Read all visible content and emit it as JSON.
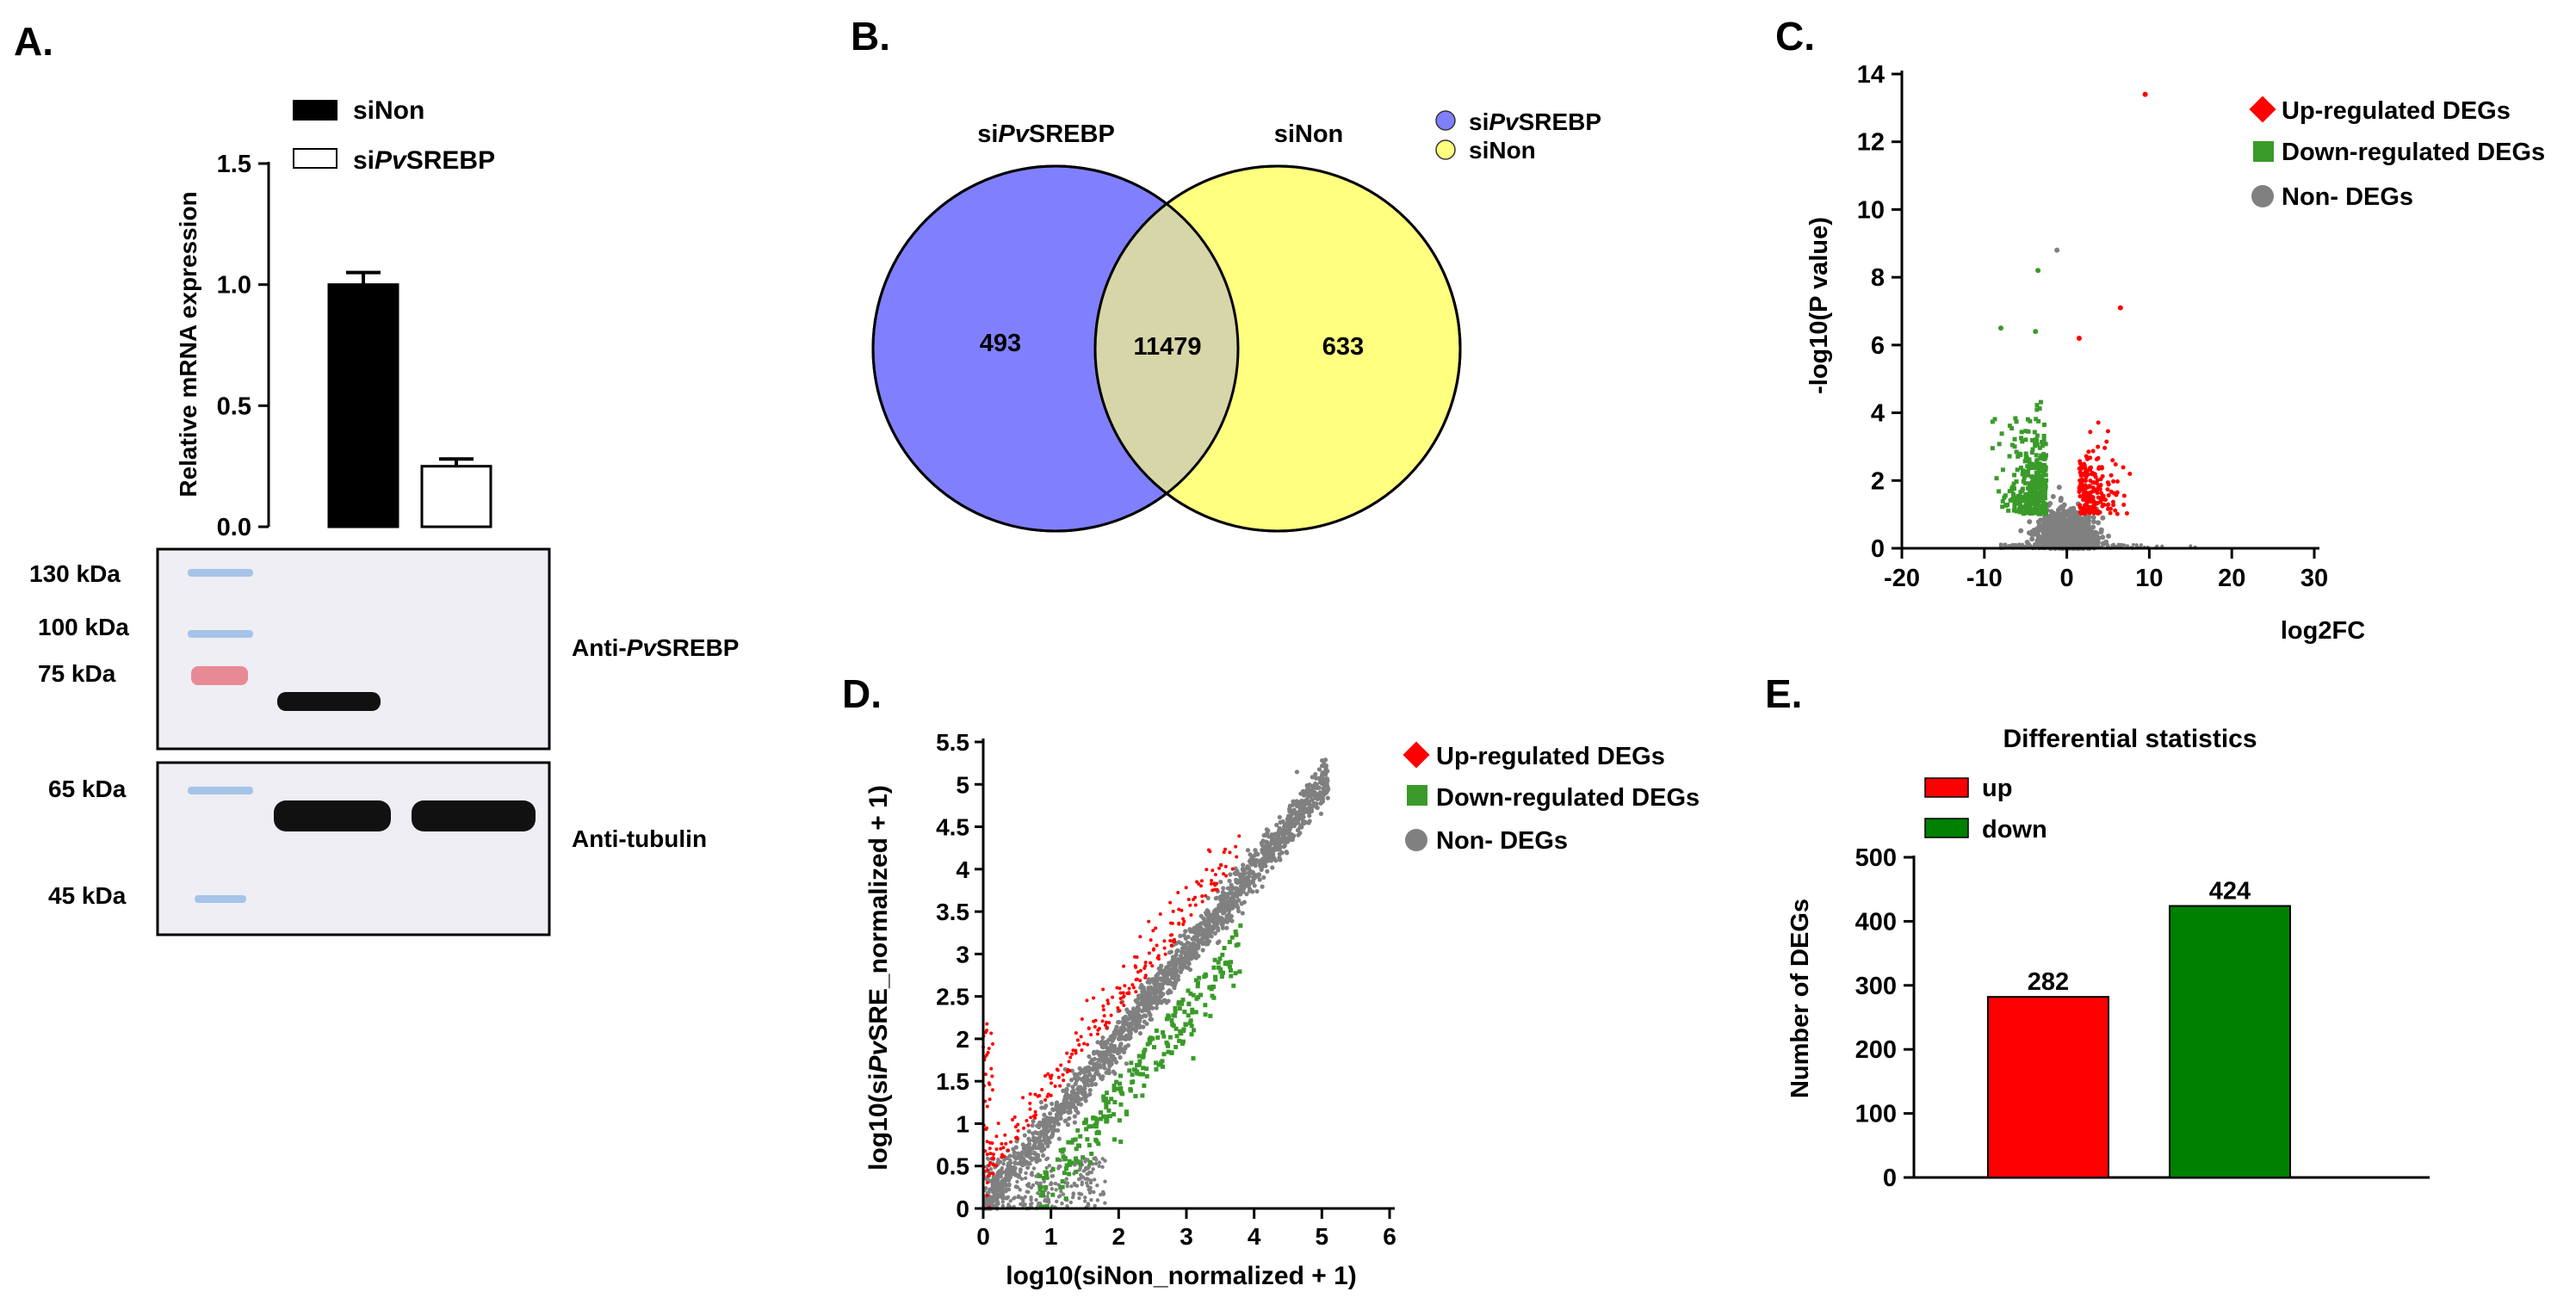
{
  "panels": {
    "a": "A.",
    "b": "B.",
    "c": "C.",
    "d": "D.",
    "e": "E."
  },
  "colors": {
    "up": "#ff0000",
    "down": "#008000",
    "down_light": "#3a9a2a",
    "non": "#808080",
    "venn_left": "#8080ff",
    "venn_right": "#ffff80",
    "venn_overlap": "#d6d6a8"
  },
  "chart_data": [
    {
      "id": "A",
      "type": "bar",
      "title": "",
      "ylabel": "Relative mRNA expression",
      "xlabel": "",
      "ylim": [
        0,
        1.5
      ],
      "yticks": [
        "0.0",
        "0.5",
        "1.0",
        "1.5"
      ],
      "categories": [
        "siNon",
        "siPvSREBP"
      ],
      "values": [
        1.0,
        0.25
      ],
      "errors": [
        0.05,
        0.03
      ],
      "legend": [
        {
          "label": "siNon",
          "fill": "#000000"
        },
        {
          "label_prefix": "si",
          "label_italic": "Pv",
          "label_suffix": "SREBP",
          "fill": "#ffffff"
        }
      ],
      "blots": {
        "top": {
          "markers": [
            "130 kDa",
            "100 kDa",
            "75 kDa"
          ],
          "label_prefix": "Anti-",
          "label_italic": "Pv",
          "label_suffix": "SREBP"
        },
        "bottom": {
          "markers": [
            "65 kDa",
            "45 kDa"
          ],
          "label": "Anti-tubulin"
        }
      }
    },
    {
      "id": "B",
      "type": "venn",
      "sets": [
        {
          "label_prefix": "si",
          "label_italic": "Pv",
          "label_suffix": "SREBP"
        },
        {
          "label": "siNon"
        }
      ],
      "only_left": 493,
      "overlap": 11479,
      "only_right": 633,
      "legend": [
        {
          "label_prefix": "si",
          "label_italic": "Pv",
          "label_suffix": "SREBP"
        },
        {
          "label": "siNon"
        }
      ]
    },
    {
      "id": "C",
      "type": "scatter",
      "title": "",
      "xlabel": "log2FC",
      "ylabel": "-log10(P value)",
      "xlim": [
        -20,
        30
      ],
      "ylim": [
        0,
        14
      ],
      "xticks": [
        "-20",
        "-10",
        "0",
        "10",
        "20",
        "30"
      ],
      "yticks": [
        "0",
        "2",
        "4",
        "6",
        "8",
        "10",
        "12",
        "14"
      ],
      "legend": [
        "Up-regulated DEGs",
        "Down-regulated DEGs",
        "Non- DEGs"
      ],
      "outliers": [
        {
          "x": 9.5,
          "y": 13.4,
          "group": "up"
        },
        {
          "x": -1.2,
          "y": 8.8,
          "group": "non"
        },
        {
          "x": -3.5,
          "y": 8.2,
          "group": "down"
        },
        {
          "x": 6.5,
          "y": 7.1,
          "group": "up"
        },
        {
          "x": -8.0,
          "y": 6.5,
          "group": "down"
        },
        {
          "x": -3.8,
          "y": 6.4,
          "group": "down"
        },
        {
          "x": 1.5,
          "y": 6.2,
          "group": "up"
        }
      ]
    },
    {
      "id": "D",
      "type": "scatter",
      "xlabel": "log10(siNon_normalized + 1)",
      "ylabel_prefix": "log10(si",
      "ylabel_italic": "Pv",
      "ylabel_suffix": "SRE_normalized + 1)",
      "xlim": [
        0,
        6
      ],
      "ylim": [
        0,
        5.5
      ],
      "xticks": [
        "0",
        "1",
        "2",
        "3",
        "4",
        "5",
        "6"
      ],
      "yticks": [
        "0",
        "0.5",
        "1",
        "1.5",
        "2",
        "2.5",
        "3",
        "3.5",
        "4",
        "4.5",
        "5",
        "5.5"
      ],
      "legend": [
        "Up-regulated DEGs",
        "Down-regulated DEGs",
        "Non- DEGs"
      ]
    },
    {
      "id": "E",
      "type": "bar",
      "title": "Differential statistics",
      "xlabel": "",
      "ylabel": "Number of DEGs",
      "ylim": [
        0,
        500
      ],
      "yticks": [
        "0",
        "100",
        "200",
        "300",
        "400",
        "500"
      ],
      "categories": [
        "up",
        "down"
      ],
      "values": [
        282,
        424
      ],
      "data_labels": [
        "282",
        "424"
      ],
      "legend": [
        "up",
        "down"
      ]
    }
  ]
}
